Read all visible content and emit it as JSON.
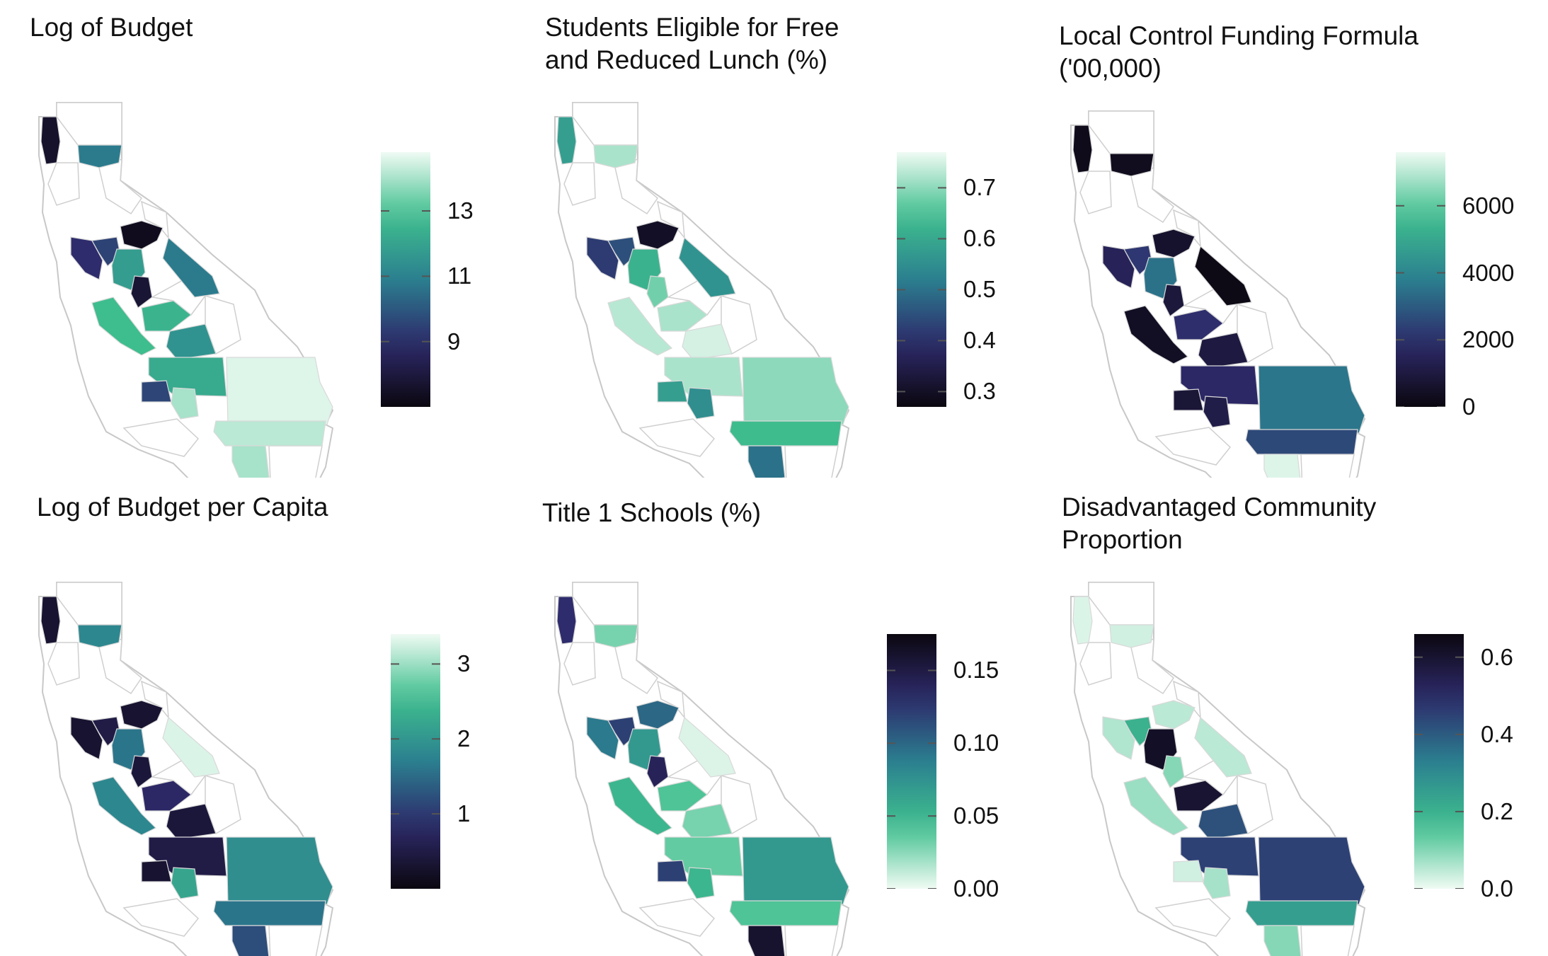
{
  "palette_note_colors": [
    "#f0fbf4",
    "#3fbf8e",
    "#2b7f8f",
    "#2e2a6b",
    "#0b0710"
  ],
  "panels": [
    {
      "id": "log-budget",
      "title": "Log of Budget",
      "ticks": [
        "13",
        "11",
        "9"
      ],
      "tick_values": [
        13,
        11,
        9
      ],
      "scale_min": 7,
      "scale_max": 14.8,
      "reverse": false,
      "regions": [
        {
          "name": "north-coast",
          "value": 7.6
        },
        {
          "name": "shasta",
          "value": 10.8
        },
        {
          "name": "sierra-north",
          "value": 7.3
        },
        {
          "name": "bay-west",
          "value": 9.0
        },
        {
          "name": "sacramento",
          "value": 9.5
        },
        {
          "name": "central-a",
          "value": 11.8
        },
        {
          "name": "central-b",
          "value": 7.8
        },
        {
          "name": "east-sierra",
          "value": 10.8
        },
        {
          "name": "san-joaquin",
          "value": 12.5
        },
        {
          "name": "coast-central",
          "value": 12.8
        },
        {
          "name": "tulare",
          "value": 11.5
        },
        {
          "name": "kern",
          "value": 12.2
        },
        {
          "name": "santa-barbara",
          "value": 9.6
        },
        {
          "name": "ventura",
          "value": 14.0
        },
        {
          "name": "san-bernardino",
          "value": 14.6
        },
        {
          "name": "riverside",
          "value": 14.2
        },
        {
          "name": "san-diego",
          "value": 14.0
        }
      ]
    },
    {
      "id": "free-lunch",
      "title": "Students Eligible for Free\nand Reduced Lunch (%)",
      "ticks": [
        "0.7",
        "0.6",
        "0.5",
        "0.4",
        "0.3"
      ],
      "tick_values": [
        0.7,
        0.6,
        0.5,
        0.4,
        0.3
      ],
      "scale_min": 0.27,
      "scale_max": 0.77,
      "reverse": false,
      "regions": [
        {
          "name": "north-coast",
          "value": 0.58
        },
        {
          "name": "shasta",
          "value": 0.72
        },
        {
          "name": "sierra-north",
          "value": 0.3
        },
        {
          "name": "bay-west",
          "value": 0.42
        },
        {
          "name": "sacramento",
          "value": 0.45
        },
        {
          "name": "central-a",
          "value": 0.62
        },
        {
          "name": "central-b",
          "value": 0.68
        },
        {
          "name": "east-sierra",
          "value": 0.56
        },
        {
          "name": "san-joaquin",
          "value": 0.72
        },
        {
          "name": "coast-central",
          "value": 0.73
        },
        {
          "name": "tulare",
          "value": 0.75
        },
        {
          "name": "kern",
          "value": 0.72
        },
        {
          "name": "santa-barbara",
          "value": 0.58
        },
        {
          "name": "ventura",
          "value": 0.55
        },
        {
          "name": "san-bernardino",
          "value": 0.7
        },
        {
          "name": "riverside",
          "value": 0.64
        },
        {
          "name": "san-diego",
          "value": 0.5
        }
      ]
    },
    {
      "id": "lcff",
      "title": "Local Control Funding Formula\n('00,000)",
      "ticks": [
        "6000",
        "4000",
        "2000",
        "0"
      ],
      "tick_values": [
        6000,
        4000,
        2000,
        0
      ],
      "scale_min": 0,
      "scale_max": 7600,
      "reverse": false,
      "regions": [
        {
          "name": "north-coast",
          "value": 200
        },
        {
          "name": "shasta",
          "value": 300
        },
        {
          "name": "sierra-north",
          "value": 600
        },
        {
          "name": "bay-west",
          "value": 1500
        },
        {
          "name": "sacramento",
          "value": 2200
        },
        {
          "name": "central-a",
          "value": 3500
        },
        {
          "name": "central-b",
          "value": 900
        },
        {
          "name": "east-sierra",
          "value": 100
        },
        {
          "name": "san-joaquin",
          "value": 2000
        },
        {
          "name": "coast-central",
          "value": 400
        },
        {
          "name": "tulare",
          "value": 1000
        },
        {
          "name": "kern",
          "value": 1800
        },
        {
          "name": "santa-barbara",
          "value": 800
        },
        {
          "name": "ventura",
          "value": 1200
        },
        {
          "name": "san-bernardino",
          "value": 3600
        },
        {
          "name": "riverside",
          "value": 2600
        },
        {
          "name": "san-diego",
          "value": 7400
        }
      ]
    },
    {
      "id": "log-budget-capita",
      "title": "Log of Budget per Capita",
      "ticks": [
        "3",
        "2",
        "1"
      ],
      "tick_values": [
        3,
        2,
        1
      ],
      "scale_min": 0,
      "scale_max": 3.4,
      "reverse": false,
      "regions": [
        {
          "name": "north-coast",
          "value": 0.3
        },
        {
          "name": "shasta",
          "value": 1.8
        },
        {
          "name": "sierra-north",
          "value": 0.3
        },
        {
          "name": "bay-west",
          "value": 0.3
        },
        {
          "name": "sacramento",
          "value": 0.5
        },
        {
          "name": "central-a",
          "value": 1.6
        },
        {
          "name": "central-b",
          "value": 0.4
        },
        {
          "name": "east-sierra",
          "value": 3.3
        },
        {
          "name": "san-joaquin",
          "value": 0.8
        },
        {
          "name": "coast-central",
          "value": 1.8
        },
        {
          "name": "tulare",
          "value": 0.4
        },
        {
          "name": "kern",
          "value": 0.5
        },
        {
          "name": "santa-barbara",
          "value": 0.3
        },
        {
          "name": "ventura",
          "value": 2.2
        },
        {
          "name": "san-bernardino",
          "value": 1.9
        },
        {
          "name": "riverside",
          "value": 1.6
        },
        {
          "name": "san-diego",
          "value": 1.2
        }
      ]
    },
    {
      "id": "title1",
      "title": "Title 1 Schools (%)",
      "ticks": [
        "0.15",
        "0.10",
        "0.05",
        "0.00"
      ],
      "tick_values": [
        0.15,
        0.1,
        0.05,
        0
      ],
      "scale_min": 0,
      "scale_max": 0.175,
      "reverse": true,
      "regions": [
        {
          "name": "north-coast",
          "value": 0.13
        },
        {
          "name": "shasta",
          "value": 0.03
        },
        {
          "name": "sierra-north",
          "value": 0.1
        },
        {
          "name": "bay-west",
          "value": 0.09
        },
        {
          "name": "sacramento",
          "value": 0.12
        },
        {
          "name": "central-a",
          "value": 0.07
        },
        {
          "name": "central-b",
          "value": 0.14
        },
        {
          "name": "east-sierra",
          "value": 0.005
        },
        {
          "name": "san-joaquin",
          "value": 0.04
        },
        {
          "name": "coast-central",
          "value": 0.05
        },
        {
          "name": "tulare",
          "value": 0.03
        },
        {
          "name": "kern",
          "value": 0.035
        },
        {
          "name": "santa-barbara",
          "value": 0.12
        },
        {
          "name": "ventura",
          "value": 0.05
        },
        {
          "name": "san-bernardino",
          "value": 0.07
        },
        {
          "name": "riverside",
          "value": 0.04
        },
        {
          "name": "san-diego",
          "value": 0.16
        }
      ]
    },
    {
      "id": "disadvantaged",
      "title": "Disadvantaged Community\nProportion",
      "ticks": [
        "0.6",
        "0.4",
        "0.2",
        "0.0"
      ],
      "tick_values": [
        0.6,
        0.4,
        0.2,
        0
      ],
      "scale_min": 0,
      "scale_max": 0.66,
      "reverse": true,
      "regions": [
        {
          "name": "north-coast",
          "value": 0.02
        },
        {
          "name": "shasta",
          "value": 0.03
        },
        {
          "name": "sierra-north",
          "value": 0.05
        },
        {
          "name": "bay-west",
          "value": 0.06
        },
        {
          "name": "sacramento",
          "value": 0.2
        },
        {
          "name": "central-a",
          "value": 0.62
        },
        {
          "name": "central-b",
          "value": 0.1
        },
        {
          "name": "east-sierra",
          "value": 0.05
        },
        {
          "name": "san-joaquin",
          "value": 0.6
        },
        {
          "name": "coast-central",
          "value": 0.08
        },
        {
          "name": "tulare",
          "value": 0.42
        },
        {
          "name": "kern",
          "value": 0.45
        },
        {
          "name": "santa-barbara",
          "value": 0.03
        },
        {
          "name": "ventura",
          "value": 0.07
        },
        {
          "name": "san-bernardino",
          "value": 0.45
        },
        {
          "name": "riverside",
          "value": 0.25
        },
        {
          "name": "san-diego",
          "value": 0.1
        }
      ]
    }
  ]
}
